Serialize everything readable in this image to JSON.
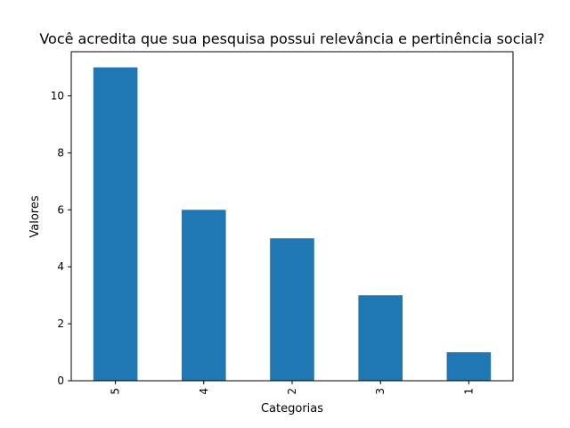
{
  "chart_data": {
    "type": "bar",
    "title": "Você acredita que sua pesquisa possui relevância e pertinência social?",
    "xlabel": "Categorias",
    "ylabel": "Valores",
    "categories": [
      "5",
      "4",
      "2",
      "3",
      "1"
    ],
    "values": [
      11,
      6,
      5,
      3,
      1
    ],
    "ylim": [
      0,
      11.55
    ],
    "yticks": [
      0,
      2,
      4,
      6,
      8,
      10
    ],
    "grid": false,
    "bar_color": "#1f77b4",
    "x_tick_rotation": "vertical"
  }
}
